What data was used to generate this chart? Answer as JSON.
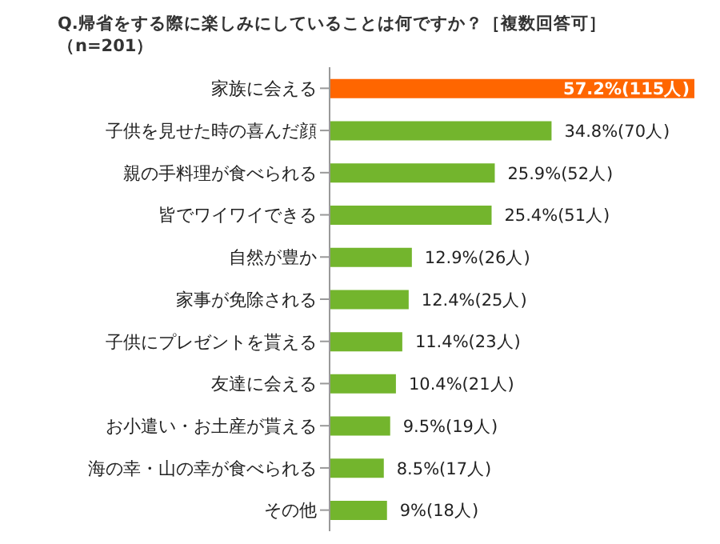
{
  "chart_data": {
    "type": "bar",
    "orientation": "horizontal",
    "title": "Q.帰省をする際に楽しみにしていることは何ですか？［複数回答可］",
    "subtitle": "（n=201）",
    "categories": [
      "家族に会える",
      "子供を見せた時の喜んだ顔",
      "親の手料理が食べられる",
      "皆でワイワイできる",
      "自然が豊か",
      "家事が免除される",
      "子供にプレゼントを貰える",
      "友達に会える",
      "お小遣い・お土産が貰える",
      "海の幸・山の幸が食べられる",
      "その他"
    ],
    "values": [
      57.2,
      34.8,
      25.9,
      25.4,
      12.9,
      12.4,
      11.4,
      10.4,
      9.5,
      8.5,
      9
    ],
    "value_labels": [
      "57.2%(115人)",
      "34.8%(70人)",
      "25.9%(52人)",
      "25.4%(51人)",
      "12.9%(26人)",
      "12.4%(25人)",
      "11.4%(23人)",
      "10.4%(21人)",
      "9.5%(19人)",
      "8.5%(17人)",
      "9%(18人)"
    ],
    "colors": [
      "#ff6600",
      "#73b52d",
      "#73b52d",
      "#73b52d",
      "#73b52d",
      "#73b52d",
      "#73b52d",
      "#73b52d",
      "#73b52d",
      "#73b52d",
      "#73b52d"
    ],
    "grid": false,
    "legend": false
  }
}
